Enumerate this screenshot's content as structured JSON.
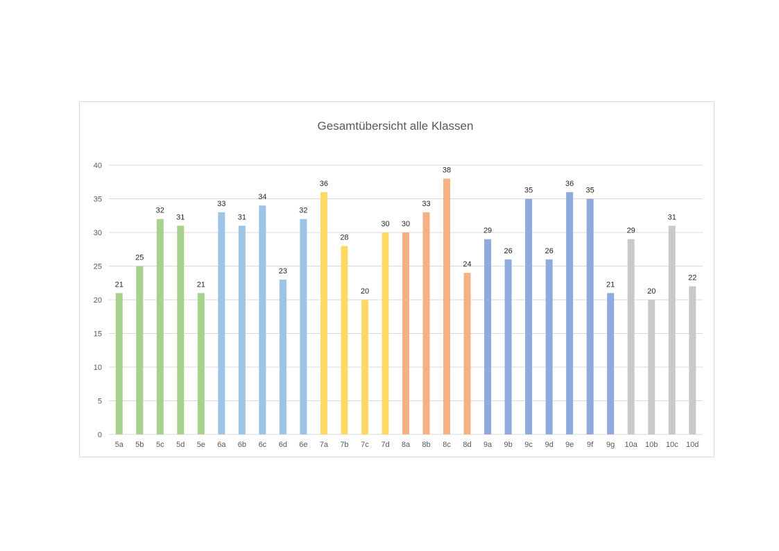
{
  "chart_data": {
    "type": "bar",
    "title": "Gesamtübersicht alle Klassen",
    "xlabel": "",
    "ylabel": "",
    "ylim": [
      0,
      40
    ],
    "yticks": [
      0,
      5,
      10,
      15,
      20,
      25,
      30,
      35,
      40
    ],
    "grid": true,
    "legend": "none",
    "categories": [
      "5a",
      "5b",
      "5c",
      "5d",
      "5e",
      "6a",
      "6b",
      "6c",
      "6d",
      "6e",
      "7a",
      "7b",
      "7c",
      "7d",
      "8a",
      "8b",
      "8c",
      "8d",
      "9a",
      "9b",
      "9c",
      "9d",
      "9e",
      "9f",
      "9g",
      "10a",
      "10b",
      "10c",
      "10d"
    ],
    "values": [
      21,
      25,
      32,
      31,
      21,
      33,
      31,
      34,
      23,
      32,
      36,
      28,
      20,
      30,
      30,
      33,
      38,
      24,
      29,
      26,
      35,
      26,
      36,
      35,
      21,
      29,
      20,
      31,
      22
    ],
    "colors": [
      "#a9d18e",
      "#a9d18e",
      "#a9d18e",
      "#a9d18e",
      "#a9d18e",
      "#9dc3e6",
      "#9dc3e6",
      "#9dc3e6",
      "#9dc3e6",
      "#9dc3e6",
      "#ffd966",
      "#ffd966",
      "#ffd966",
      "#ffd966",
      "#f4b183",
      "#f4b183",
      "#f4b183",
      "#f4b183",
      "#8faadc",
      "#8faadc",
      "#8faadc",
      "#8faadc",
      "#8faadc",
      "#8faadc",
      "#8faadc",
      "#c9c9c9",
      "#c9c9c9",
      "#c9c9c9",
      "#c9c9c9"
    ]
  }
}
